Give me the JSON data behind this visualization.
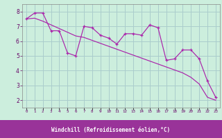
{
  "xlabel": "Windchill (Refroidissement éolien,°C)",
  "bg_color": "#cceedd",
  "grid_color": "#aacccc",
  "line_color": "#aa22aa",
  "hours": [
    0,
    1,
    2,
    3,
    4,
    5,
    6,
    7,
    8,
    9,
    10,
    11,
    12,
    13,
    14,
    15,
    16,
    17,
    18,
    19,
    20,
    21,
    22,
    23
  ],
  "windchill": [
    7.5,
    7.9,
    7.9,
    6.7,
    6.7,
    5.2,
    5.0,
    7.0,
    6.9,
    6.4,
    6.2,
    5.8,
    6.5,
    6.5,
    6.4,
    7.1,
    6.9,
    4.7,
    4.8,
    5.4,
    5.4,
    4.8,
    3.3,
    2.2
  ],
  "trend": [
    7.5,
    7.55,
    7.35,
    7.1,
    6.85,
    6.6,
    6.35,
    6.25,
    6.05,
    5.85,
    5.65,
    5.45,
    5.25,
    5.05,
    4.85,
    4.65,
    4.45,
    4.25,
    4.05,
    3.85,
    3.55,
    3.1,
    2.2,
    2.0
  ],
  "ylim": [
    1.5,
    8.5
  ],
  "yticks": [
    2,
    3,
    4,
    5,
    6,
    7,
    8
  ],
  "xlim": [
    -0.5,
    23.5
  ],
  "xlabel_bg": "#993399",
  "xlabel_color": "#ffffff"
}
